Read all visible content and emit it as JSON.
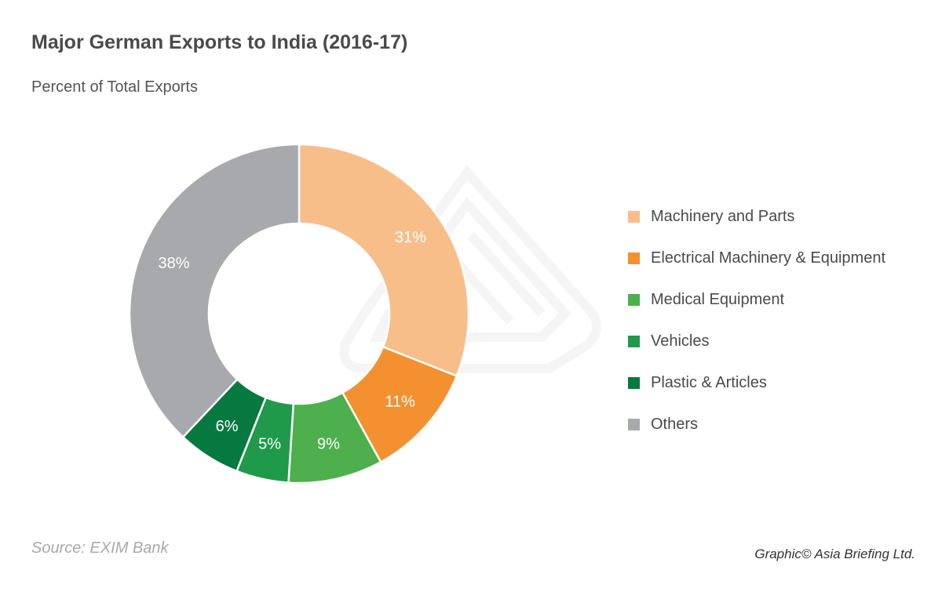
{
  "header": {
    "title": "Major German Exports to India (2016-17)",
    "subtitle": "Percent of Total Exports"
  },
  "chart_data": {
    "type": "pie",
    "donut": true,
    "title": "Major German Exports to India (2016-17)",
    "subtitle": "Percent of Total Exports",
    "unit": "%",
    "legend_position": "right",
    "slices": [
      {
        "label": "Machinery and Parts",
        "value": 31,
        "display": "31%",
        "color": "#f8be8a"
      },
      {
        "label": "Electrical Machinery & Equipment",
        "value": 11,
        "display": "11%",
        "color": "#f39131"
      },
      {
        "label": "Medical Equipment",
        "value": 9,
        "display": "9%",
        "color": "#4db04c"
      },
      {
        "label": "Vehicles",
        "value": 5,
        "display": "5%",
        "color": "#1f9a4a"
      },
      {
        "label": "Plastic & Articles",
        "value": 6,
        "display": "6%",
        "color": "#05793f"
      },
      {
        "label": "Others",
        "value": 38,
        "display": "38%",
        "color": "#a7a9ac"
      }
    ]
  },
  "footer": {
    "source": "Source: EXIM Bank",
    "credit": "Graphic© Asia Briefing Ltd."
  }
}
